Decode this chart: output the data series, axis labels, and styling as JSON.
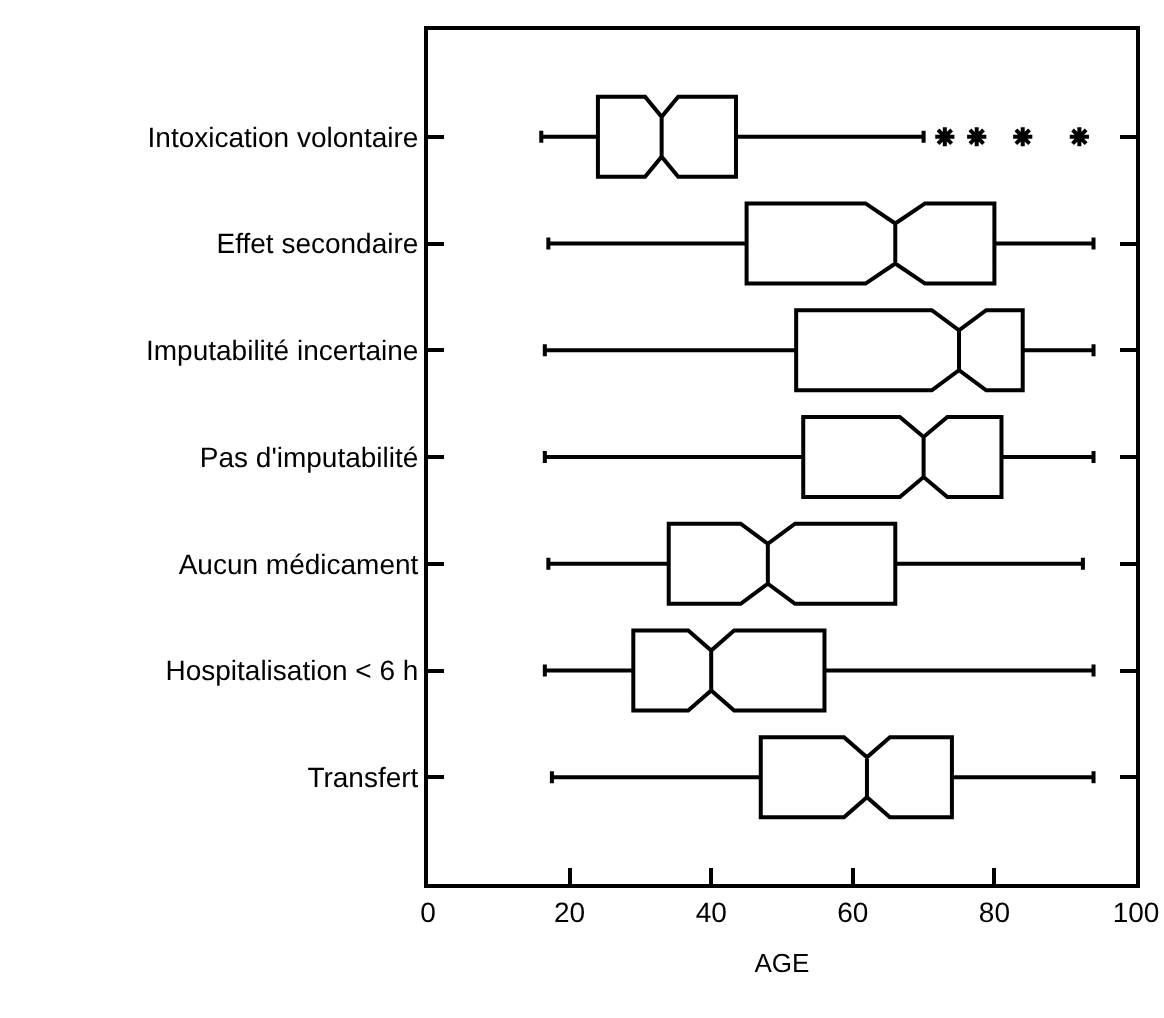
{
  "chart_data": {
    "type": "box",
    "xlabel": "AGE",
    "orientation": "horizontal",
    "categories": [
      "Intoxication volontaire",
      "Effet secondaire",
      "Imputabilité incertaine",
      "Pas d'imputabilité",
      "Aucun médicament",
      "Hospitalisation < 6 h",
      "Transfert"
    ],
    "boxes": [
      {
        "low": 16,
        "q1": 24,
        "median": 33,
        "q3": 43.5,
        "high": 70,
        "outliers": [
          73,
          77.5,
          84,
          92
        ]
      },
      {
        "low": 17,
        "q1": 45,
        "median": 66,
        "q3": 80,
        "high": 94
      },
      {
        "low": 16.5,
        "q1": 52,
        "median": 75,
        "q3": 84,
        "high": 94
      },
      {
        "low": 16.5,
        "q1": 53,
        "median": 70,
        "q3": 81,
        "high": 94
      },
      {
        "low": 17,
        "q1": 34,
        "median": 48,
        "q3": 66,
        "high": 92.5
      },
      {
        "low": 16.5,
        "q1": 29,
        "median": 40,
        "q3": 56,
        "high": 94
      },
      {
        "low": 17.5,
        "q1": 47,
        "median": 62,
        "q3": 74,
        "high": 94
      }
    ],
    "color": "#000000",
    "marker": "star",
    "grid": false,
    "xlim": [
      0,
      100
    ],
    "xticks": [
      0,
      20,
      40,
      60,
      80,
      100
    ]
  }
}
